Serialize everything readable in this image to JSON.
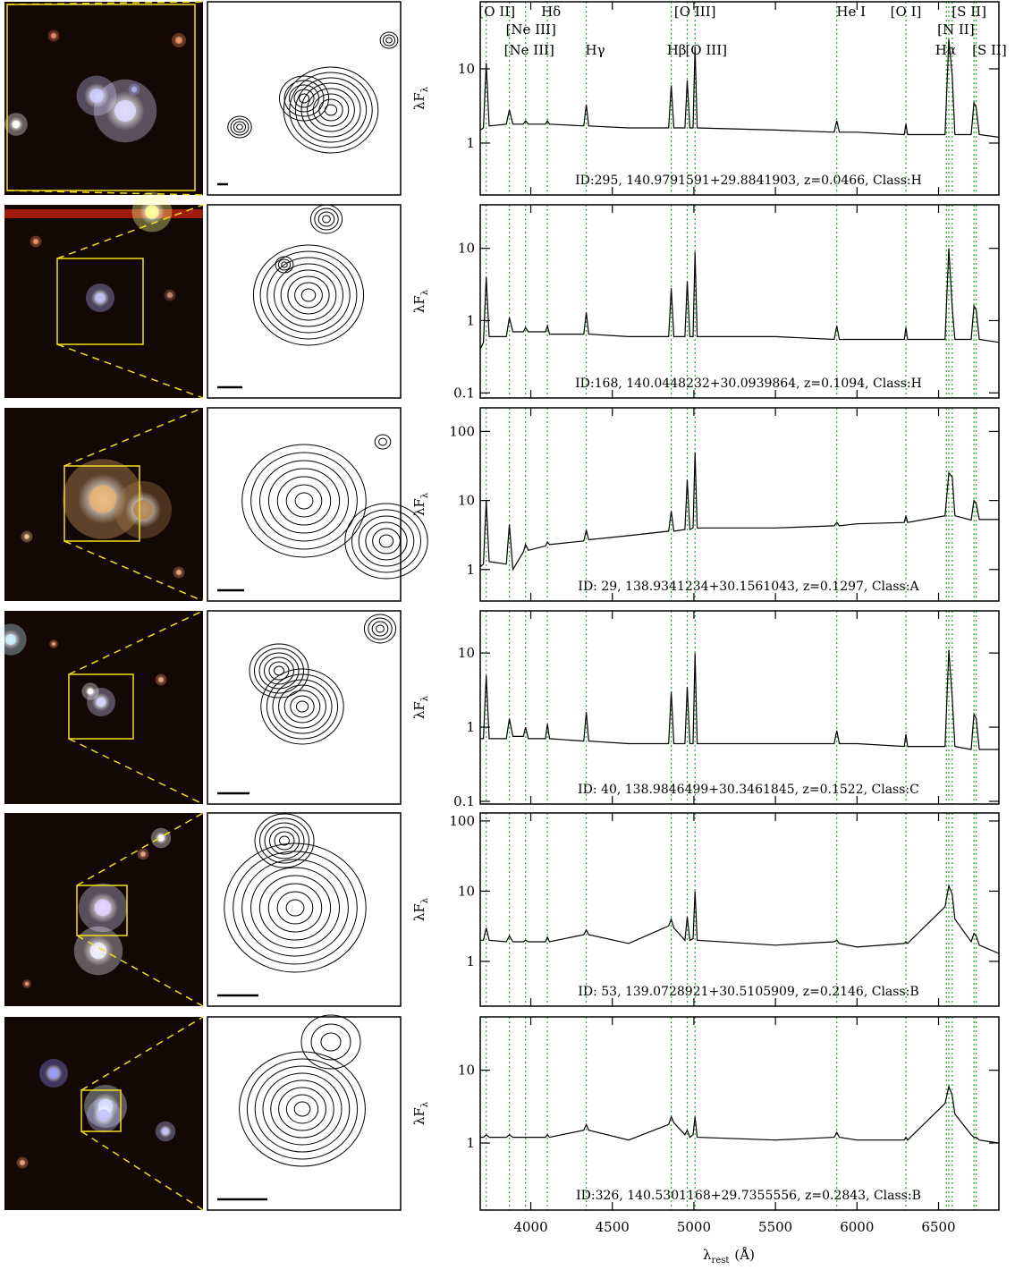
{
  "emission_lines": [
    3727,
    3869,
    3968,
    4102,
    4340,
    4861,
    4959,
    5007,
    5876,
    6300,
    6548,
    6563,
    6584,
    6717,
    6731
  ],
  "line_color": "#2ca02c",
  "line_labels": [
    {
      "text": "[O II]",
      "wave": 3727
    },
    {
      "text": "Hδ",
      "wave": 4102
    },
    {
      "text": "[O III]",
      "wave": 5007
    },
    {
      "text": "He I",
      "wave": 5876
    },
    {
      "text": "[O I]",
      "wave": 6300
    },
    {
      "text": "[S II]",
      "wave": 6731
    },
    {
      "text": "[Ne III]",
      "wave": 3968
    },
    {
      "text": "[N II]",
      "wave": 6584
    },
    {
      "text": "[Ne III]",
      "wave": 3869
    },
    {
      "text": "Hγ",
      "wave": 4340
    },
    {
      "text": "Hβ",
      "wave": 4861
    },
    {
      "text": "[O III]",
      "wave": 4959
    },
    {
      "text": "Hα",
      "wave": 6563
    },
    {
      "text": "[S II]",
      "wave": 6717
    }
  ],
  "y_label": {
    "main": "λF",
    "sub": "λ"
  },
  "x_label": {
    "main": "λ",
    "sub": "rest",
    "unit": "(Å)"
  },
  "chart_data": [
    {
      "type": "line",
      "annotation": "ID:295, 140.9791591+29.8841903, z=0.0466, Class:H",
      "log_y": true,
      "xlim": [
        3690,
        6870
      ],
      "xticks": [
        4000,
        4500,
        5000,
        5500,
        6000,
        6500
      ],
      "ylim": [
        0.2,
        80
      ],
      "yticks": [
        1,
        10
      ],
      "x": [
        3690,
        3710,
        3727,
        3745,
        3850,
        3869,
        3890,
        3955,
        3968,
        3985,
        4090,
        4102,
        4115,
        4325,
        4340,
        4355,
        4600,
        4845,
        4861,
        4877,
        4945,
        4959,
        4975,
        4995,
        5007,
        5020,
        5500,
        5860,
        5876,
        5892,
        6000,
        6290,
        6300,
        6310,
        6540,
        6563,
        6584,
        6600,
        6700,
        6717,
        6731,
        6750,
        6870
      ],
      "series": [
        {
          "color": "#000000",
          "values": [
            1.5,
            1.6,
            12,
            1.7,
            1.8,
            2.8,
            1.8,
            1.8,
            2.0,
            1.8,
            1.8,
            2.0,
            1.8,
            1.7,
            3.3,
            1.7,
            1.6,
            1.6,
            6,
            1.6,
            1.6,
            7,
            1.6,
            1.6,
            20,
            1.6,
            1.5,
            1.4,
            2.0,
            1.4,
            1.4,
            1.3,
            1.8,
            1.3,
            1.3,
            25,
            8,
            1.3,
            1.3,
            3.5,
            3,
            1.3,
            1.2
          ]
        }
      ]
    },
    {
      "type": "line",
      "annotation": "ID:168, 140.0448232+30.0939864, z=0.1094, Class:H",
      "log_y": true,
      "xlim": [
        3690,
        6870
      ],
      "xticks": [
        4000,
        4500,
        5000,
        5500,
        6000,
        6500
      ],
      "ylim": [
        0.085,
        40
      ],
      "yticks": [
        0.1,
        1,
        10
      ],
      "x": [
        3690,
        3710,
        3727,
        3745,
        3850,
        3869,
        3890,
        3955,
        3968,
        3985,
        4090,
        4102,
        4115,
        4325,
        4340,
        4355,
        4600,
        4845,
        4861,
        4877,
        4945,
        4959,
        4975,
        4995,
        5007,
        5020,
        5500,
        5860,
        5876,
        5892,
        6000,
        6290,
        6300,
        6310,
        6540,
        6563,
        6584,
        6600,
        6700,
        6717,
        6731,
        6750,
        6870
      ],
      "series": [
        {
          "color": "#000000",
          "values": [
            0.4,
            0.5,
            4,
            0.6,
            0.6,
            1.1,
            0.7,
            0.7,
            0.8,
            0.7,
            0.7,
            0.85,
            0.65,
            0.65,
            1.3,
            0.65,
            0.6,
            0.6,
            2.8,
            0.6,
            0.6,
            3.5,
            0.6,
            0.6,
            9,
            0.6,
            0.6,
            0.55,
            0.85,
            0.55,
            0.55,
            0.55,
            0.8,
            0.55,
            0.55,
            10,
            1.5,
            0.55,
            0.55,
            1.6,
            1.4,
            0.55,
            0.5
          ]
        }
      ]
    },
    {
      "type": "line",
      "annotation": "ID: 29, 138.9341234+30.1561043, z=0.1297, Class:A",
      "log_y": true,
      "xlim": [
        3690,
        6870
      ],
      "xticks": [
        4000,
        4500,
        5000,
        5500,
        6000,
        6500
      ],
      "ylim": [
        0.35,
        220
      ],
      "yticks": [
        1,
        10,
        100
      ],
      "x": [
        3690,
        3710,
        3727,
        3745,
        3850,
        3869,
        3890,
        3955,
        3968,
        3985,
        4090,
        4102,
        4115,
        4325,
        4340,
        4355,
        4600,
        4845,
        4861,
        4877,
        4945,
        4959,
        4975,
        4995,
        5007,
        5020,
        5500,
        5860,
        5876,
        5892,
        6000,
        6290,
        6300,
        6310,
        6540,
        6563,
        6584,
        6600,
        6700,
        6717,
        6731,
        6750,
        6870
      ],
      "series": [
        {
          "color": "#000000",
          "values": [
            1.1,
            1.2,
            10,
            1.3,
            1.2,
            4.5,
            1.0,
            1.8,
            2.3,
            1.9,
            2.2,
            2.5,
            2.3,
            2.6,
            3.7,
            2.7,
            3.1,
            3.6,
            7,
            3.6,
            3.8,
            20,
            3.8,
            4.0,
            50,
            4.0,
            4.0,
            4.3,
            4.8,
            4.3,
            4.6,
            4.8,
            6.0,
            4.8,
            6,
            25,
            22,
            6,
            5.2,
            10,
            9,
            5.3,
            5.3
          ]
        }
      ]
    },
    {
      "type": "line",
      "annotation": "ID: 40, 138.9846499+30.3461845, z=0.1522, Class:C",
      "log_y": true,
      "xlim": [
        3690,
        6870
      ],
      "xticks": [
        4000,
        4500,
        5000,
        5500,
        6000,
        6500
      ],
      "ylim": [
        0.092,
        37
      ],
      "yticks": [
        0.1,
        1,
        10
      ],
      "x": [
        3690,
        3710,
        3727,
        3745,
        3850,
        3869,
        3890,
        3955,
        3968,
        3985,
        4090,
        4102,
        4115,
        4325,
        4340,
        4355,
        4600,
        4845,
        4861,
        4877,
        4945,
        4959,
        4975,
        4995,
        5007,
        5020,
        5500,
        5860,
        5876,
        5892,
        6000,
        6290,
        6300,
        6310,
        6540,
        6563,
        6584,
        6600,
        6700,
        6717,
        6731,
        6750,
        6870
      ],
      "series": [
        {
          "color": "#000000",
          "values": [
            0.7,
            0.7,
            5,
            0.7,
            0.7,
            1.3,
            0.75,
            0.75,
            1.0,
            0.7,
            0.7,
            1.1,
            0.7,
            0.65,
            1.6,
            0.65,
            0.6,
            0.6,
            3,
            0.6,
            0.6,
            3.5,
            0.6,
            0.6,
            10,
            0.6,
            0.6,
            0.6,
            0.9,
            0.6,
            0.6,
            0.55,
            0.8,
            0.55,
            0.55,
            11,
            2.5,
            0.55,
            0.5,
            1.5,
            1.3,
            0.5,
            0.5
          ]
        }
      ]
    },
    {
      "type": "line",
      "annotation": "ID: 53, 139.0728921+30.5105909, z=0.2146, Class:B",
      "log_y": true,
      "xlim": [
        3690,
        6870
      ],
      "xticks": [
        4000,
        4500,
        5000,
        5500,
        6000,
        6500
      ],
      "ylim": [
        0.23,
        130
      ],
      "yticks": [
        1,
        10,
        100
      ],
      "x": [
        3690,
        3710,
        3727,
        3745,
        3850,
        3869,
        3890,
        3955,
        3968,
        3985,
        4090,
        4102,
        4115,
        4325,
        4340,
        4355,
        4600,
        4845,
        4861,
        4877,
        4945,
        4959,
        4975,
        4995,
        5007,
        5020,
        5500,
        5860,
        5876,
        5892,
        6000,
        6290,
        6300,
        6310,
        6540,
        6563,
        6584,
        6600,
        6700,
        6717,
        6731,
        6750,
        6870
      ],
      "series": [
        {
          "color": "#000000",
          "values": [
            2.0,
            2.0,
            3,
            2.0,
            1.9,
            2.3,
            1.9,
            1.9,
            2.0,
            1.9,
            1.9,
            2.2,
            1.9,
            2.4,
            2.8,
            2.4,
            1.8,
            3.2,
            4,
            3.0,
            2.0,
            4.3,
            2.0,
            2.1,
            10,
            2.0,
            1.7,
            1.9,
            2.0,
            1.8,
            1.6,
            1.8,
            1.9,
            1.8,
            6,
            12,
            9,
            4,
            1.9,
            2.5,
            2.3,
            1.7,
            1.3
          ]
        }
      ]
    },
    {
      "type": "line",
      "annotation": "ID:326, 140.5301168+29.7355556, z=0.2843, Class:B",
      "log_y": true,
      "xlim": [
        3690,
        6870
      ],
      "xticks": [
        4000,
        4500,
        5000,
        5500,
        6000,
        6500
      ],
      "ylim": [
        0.12,
        54
      ],
      "yticks": [
        1,
        10
      ],
      "x": [
        3690,
        3710,
        3727,
        3745,
        3850,
        3869,
        3890,
        3955,
        3968,
        3985,
        4090,
        4102,
        4115,
        4325,
        4340,
        4355,
        4600,
        4845,
        4861,
        4877,
        4945,
        4959,
        4975,
        4995,
        5007,
        5020,
        5500,
        5860,
        5876,
        5892,
        6000,
        6290,
        6300,
        6310,
        6540,
        6563,
        6584,
        6600,
        6700,
        6717,
        6731,
        6750,
        6870
      ],
      "series": [
        {
          "color": "#000000",
          "values": [
            1.2,
            1.2,
            1.3,
            1.2,
            1.2,
            1.3,
            1.2,
            1.2,
            1.2,
            1.2,
            1.2,
            1.3,
            1.2,
            1.5,
            1.8,
            1.5,
            1.1,
            1.8,
            2.3,
            1.9,
            1.3,
            1.5,
            1.2,
            1.3,
            2.3,
            1.2,
            1.1,
            1.2,
            1.4,
            1.2,
            1.1,
            1.1,
            1.2,
            1.1,
            3.5,
            6,
            4.5,
            2.5,
            1.3,
            1.2,
            1.2,
            1.1,
            1.0
          ]
        }
      ]
    }
  ]
}
